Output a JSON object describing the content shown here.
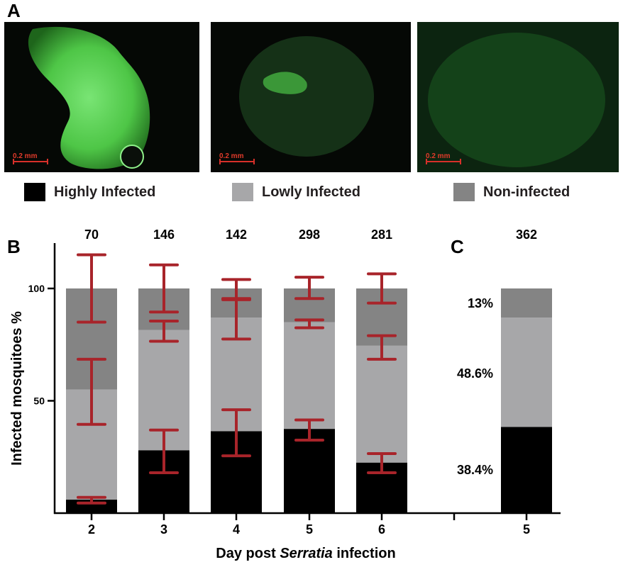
{
  "panels": {
    "a": "A",
    "b": "B",
    "c": "C"
  },
  "micrographs": [
    {
      "label": "highly-infected-micrograph",
      "scale": "0.2 mm"
    },
    {
      "label": "lowly-infected-micrograph",
      "scale": "0.2 mm"
    },
    {
      "label": "non-infected-micrograph",
      "scale": "0.2 mm"
    }
  ],
  "legend": [
    {
      "label": "Highly Infected",
      "color": "#000000"
    },
    {
      "label": "Lowly Infected",
      "color": "#a7a7a9"
    },
    {
      "label": "Non-infected",
      "color": "#848484"
    }
  ],
  "colors": {
    "error_bar": "#a8242a",
    "axis": "#000000"
  },
  "chart_data": [
    {
      "type": "bar",
      "stacked": true,
      "panel": "B",
      "xlabel": "Day post Serratia infection",
      "xlabel_parts": {
        "before": "Day post ",
        "italic": "Serratia",
        "after": " infection"
      },
      "ylabel": "Infected mosquitoes %",
      "ylim": [
        0,
        100
      ],
      "yticks": [
        50,
        100
      ],
      "categories": [
        "2",
        "3",
        "4",
        "5",
        "6"
      ],
      "n_labels": [
        "70",
        "146",
        "142",
        "298",
        "281"
      ],
      "series": [
        {
          "name": "Highly Infected",
          "values": [
            6,
            28,
            36.5,
            37.5,
            22.5
          ],
          "err_low": [
            4.5,
            18,
            25.5,
            32.5,
            18
          ],
          "err_high": [
            7,
            37,
            46,
            41.5,
            26.5
          ]
        },
        {
          "name": "Lowly Infected",
          "values": [
            49,
            53.5,
            50.5,
            47.5,
            52
          ],
          "err_low": [
            39.5,
            76.5,
            77.5,
            82.5,
            68.5
          ],
          "err_high": [
            68.5,
            85.5,
            95.5,
            86,
            79
          ]
        },
        {
          "name": "Non-infected",
          "values": [
            45,
            18.5,
            13,
            15,
            25.5
          ],
          "err_low": [
            85,
            89.5,
            95,
            95.5,
            93.5
          ],
          "err_high": [
            115,
            110.5,
            104,
            105,
            106.5
          ]
        }
      ]
    },
    {
      "type": "bar",
      "stacked": true,
      "panel": "C",
      "categories": [
        "5"
      ],
      "n_labels": [
        "362"
      ],
      "series": [
        {
          "name": "Highly Infected",
          "values": [
            38.4
          ],
          "label": "38.4%"
        },
        {
          "name": "Lowly Infected",
          "values": [
            48.6
          ],
          "label": "48.6%"
        },
        {
          "name": "Non-infected",
          "values": [
            13
          ],
          "label": "13%"
        }
      ]
    }
  ]
}
